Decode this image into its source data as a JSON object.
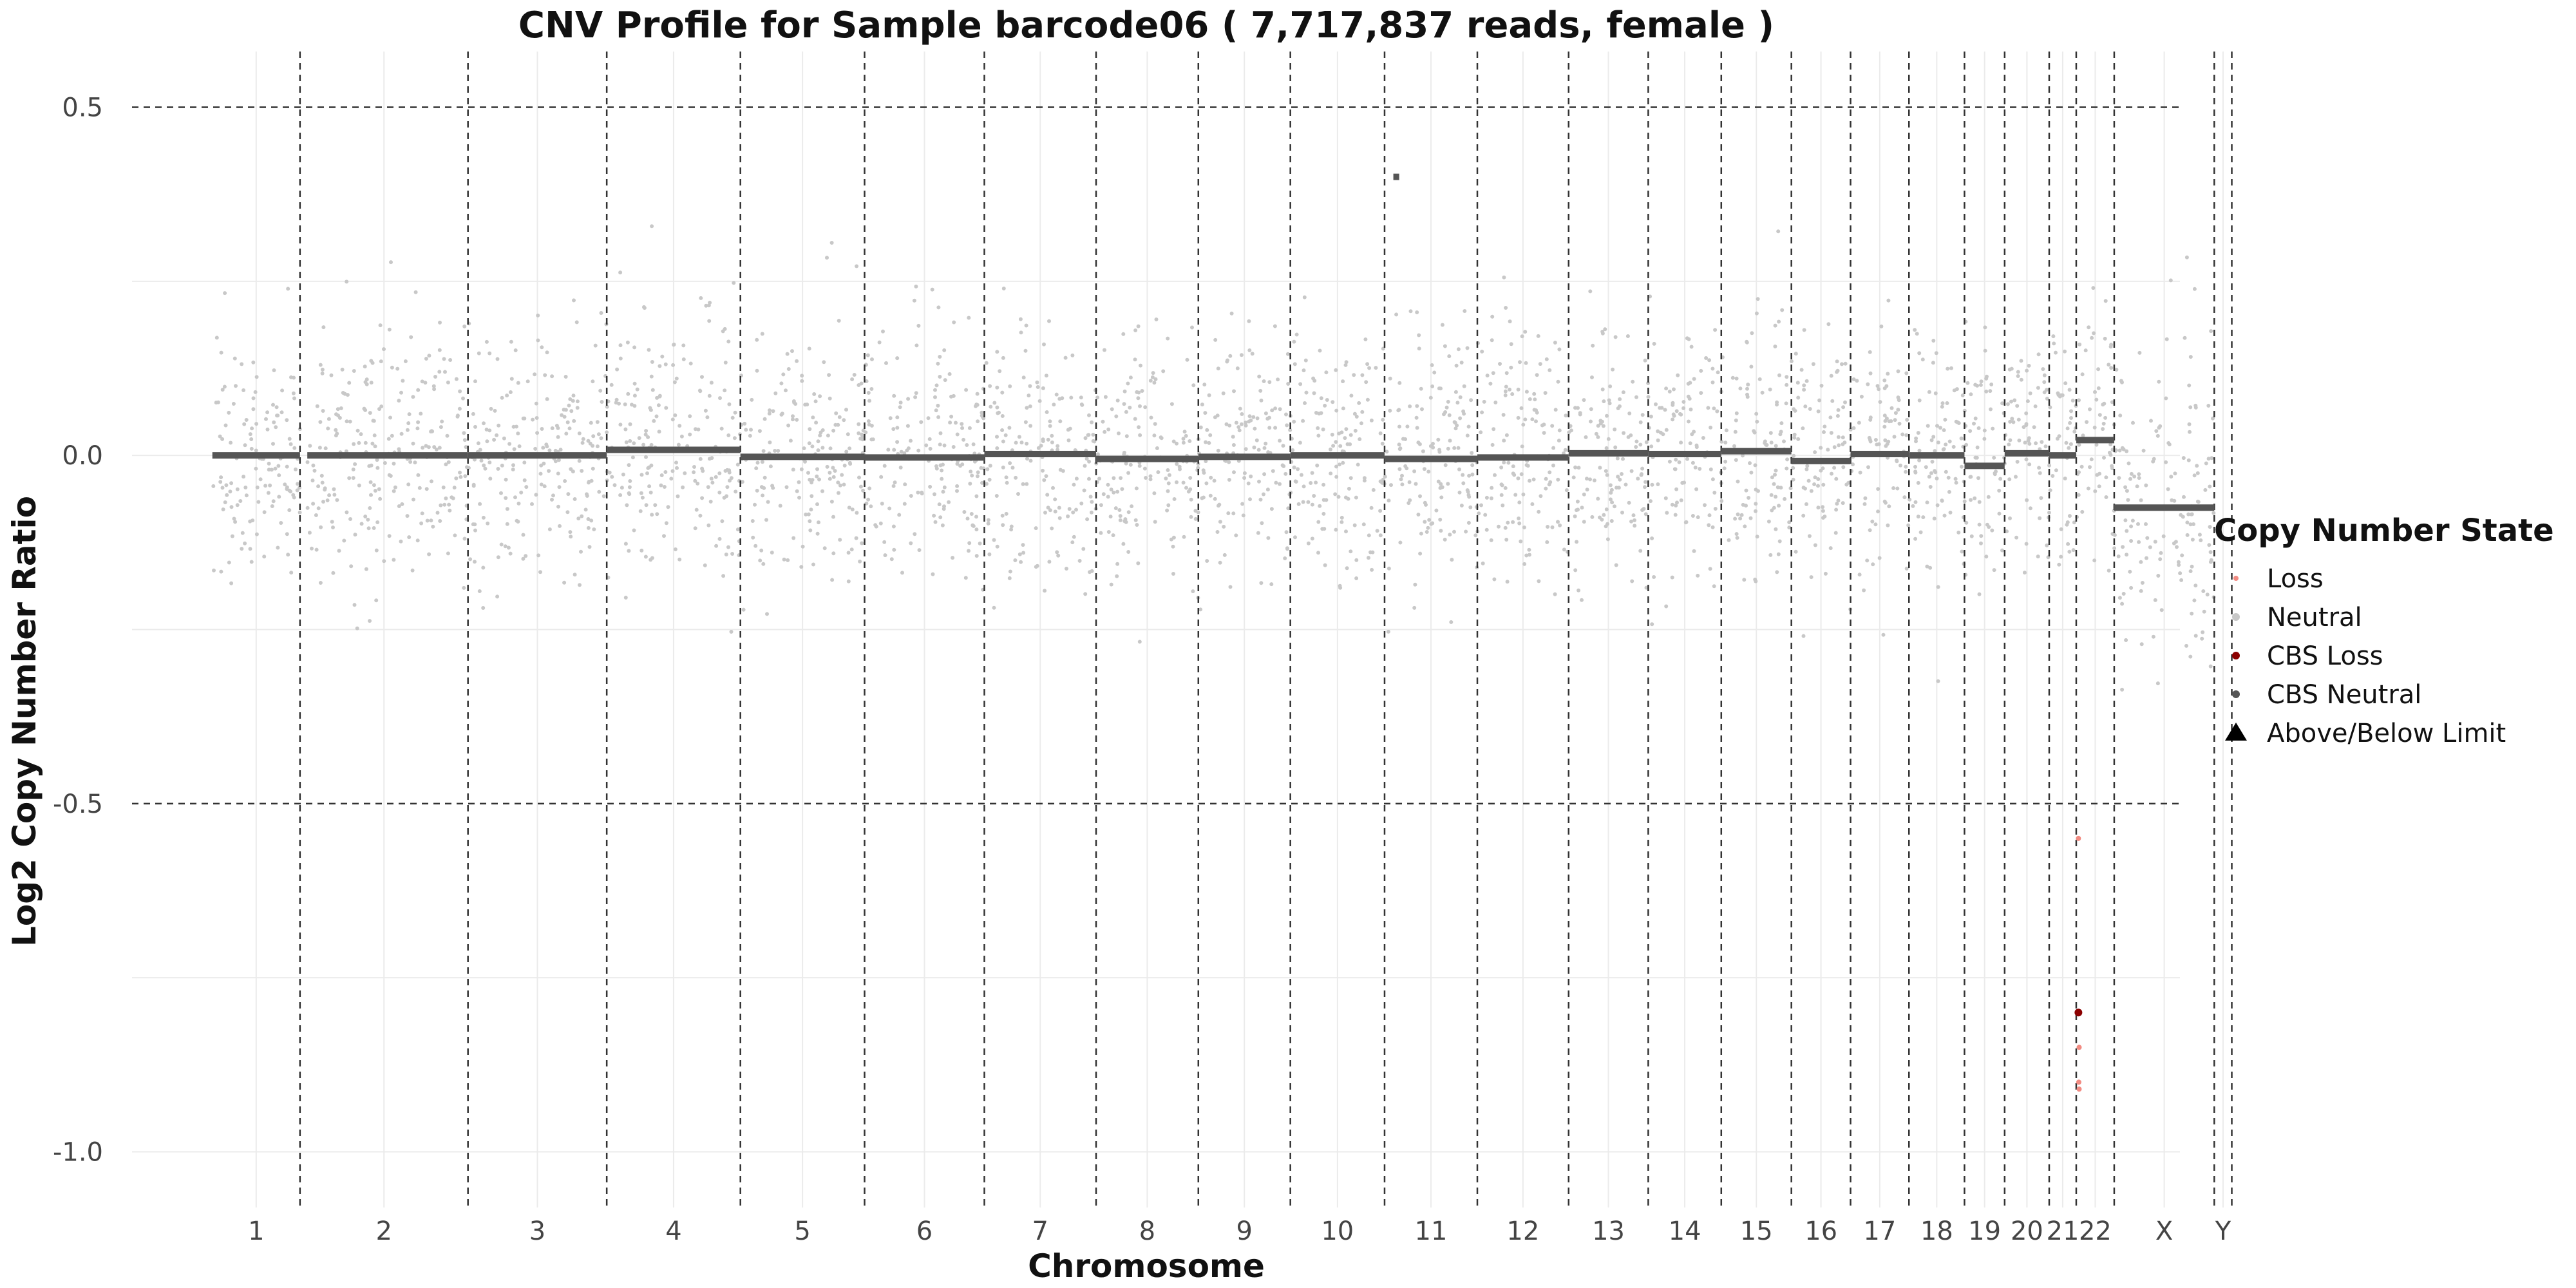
{
  "chart_data": {
    "type": "scatter",
    "title": "CNV Profile for Sample barcode06 ( 7,717,837 reads, female )",
    "xlabel": "Chromosome",
    "ylabel": "Log2 Copy Number Ratio",
    "ylim": [
      -1.08,
      0.58
    ],
    "y_ticks": [
      -1.0,
      -0.5,
      0.0,
      0.5
    ],
    "y_tick_labels": [
      "-1.0",
      "-0.5",
      "0.0",
      "0.5"
    ],
    "threshold_lines": [
      0.5,
      -0.5
    ],
    "grid": true,
    "x_axis": {
      "unit": "genomic bin index",
      "range": [
        0,
        28040
      ],
      "chromosomes": [
        {
          "name": "1",
          "start": 1100,
          "end": 2300
        },
        {
          "name": "2",
          "start": 2300,
          "end": 4600
        },
        {
          "name": "3",
          "start": 4600,
          "end": 6500
        },
        {
          "name": "4",
          "start": 6500,
          "end": 8330
        },
        {
          "name": "5",
          "start": 8330,
          "end": 10030
        },
        {
          "name": "6",
          "start": 10030,
          "end": 11670
        },
        {
          "name": "7",
          "start": 11670,
          "end": 13200
        },
        {
          "name": "8",
          "start": 13200,
          "end": 14600
        },
        {
          "name": "9",
          "start": 14600,
          "end": 15860
        },
        {
          "name": "10",
          "start": 15860,
          "end": 17150
        },
        {
          "name": "11",
          "start": 17150,
          "end": 18420
        },
        {
          "name": "12",
          "start": 18420,
          "end": 19670
        },
        {
          "name": "13",
          "start": 19670,
          "end": 20760
        },
        {
          "name": "14",
          "start": 20760,
          "end": 21760
        },
        {
          "name": "15",
          "start": 21760,
          "end": 22720
        },
        {
          "name": "16",
          "start": 22720,
          "end": 23530
        },
        {
          "name": "17",
          "start": 23530,
          "end": 24330
        },
        {
          "name": "18",
          "start": 24330,
          "end": 25090
        },
        {
          "name": "19",
          "start": 25090,
          "end": 25640
        },
        {
          "name": "20",
          "start": 25640,
          "end": 26250
        },
        {
          "name": "21",
          "start": 26250,
          "end": 26620
        },
        {
          "name": "22",
          "start": 26620,
          "end": 27140
        },
        {
          "name": "X",
          "start": 27140,
          "end": 28510
        },
        {
          "name": "Y",
          "start": 28510,
          "end": 28750
        }
      ]
    },
    "segments": [
      {
        "chrom": "1",
        "start": 1100,
        "end": 2300,
        "value": 0.0
      },
      {
        "chrom": "2",
        "start": 2400,
        "end": 4600,
        "value": 0.0
      },
      {
        "chrom": "3",
        "start": 4600,
        "end": 6500,
        "value": 0.0
      },
      {
        "chrom": "4",
        "start": 6500,
        "end": 8330,
        "value": 0.008
      },
      {
        "chrom": "5",
        "start": 8330,
        "end": 10030,
        "value": -0.002
      },
      {
        "chrom": "6",
        "start": 10030,
        "end": 11670,
        "value": -0.003
      },
      {
        "chrom": "7",
        "start": 11670,
        "end": 13200,
        "value": 0.002
      },
      {
        "chrom": "8",
        "start": 13200,
        "end": 14600,
        "value": -0.005
      },
      {
        "chrom": "9",
        "start": 14600,
        "end": 15860,
        "value": -0.002
      },
      {
        "chrom": "10",
        "start": 15860,
        "end": 17150,
        "value": 0.0
      },
      {
        "chrom": "10",
        "start": 17270,
        "end": 17350,
        "value": 0.4
      },
      {
        "chrom": "11",
        "start": 17150,
        "end": 18420,
        "value": -0.005
      },
      {
        "chrom": "12",
        "start": 18420,
        "end": 19670,
        "value": -0.003
      },
      {
        "chrom": "13",
        "start": 19670,
        "end": 20760,
        "value": 0.003
      },
      {
        "chrom": "14",
        "start": 20760,
        "end": 21760,
        "value": 0.002
      },
      {
        "chrom": "15",
        "start": 21760,
        "end": 22720,
        "value": 0.006
      },
      {
        "chrom": "16",
        "start": 22720,
        "end": 23530,
        "value": -0.008
      },
      {
        "chrom": "17",
        "start": 23530,
        "end": 24330,
        "value": 0.002
      },
      {
        "chrom": "18",
        "start": 24330,
        "end": 25090,
        "value": 0.0
      },
      {
        "chrom": "19",
        "start": 25090,
        "end": 25640,
        "value": -0.015
      },
      {
        "chrom": "20",
        "start": 25640,
        "end": 26250,
        "value": 0.003
      },
      {
        "chrom": "21",
        "start": 26250,
        "end": 26620,
        "value": 0.0
      },
      {
        "chrom": "22",
        "start": 26620,
        "end": 27140,
        "value": 0.022
      },
      {
        "chrom": "X",
        "start": 27140,
        "end": 28510,
        "value": -0.075
      }
    ],
    "cbs_loss_points": [
      {
        "chrom": "22",
        "x": 26650,
        "y": -0.8
      }
    ],
    "loss_points": [
      {
        "chrom": "22",
        "x": 26650,
        "y": -0.55
      },
      {
        "chrom": "22",
        "x": 26660,
        "y": -0.85
      },
      {
        "chrom": "22",
        "x": 26655,
        "y": -0.9
      },
      {
        "chrom": "22",
        "x": 26660,
        "y": -0.91
      }
    ],
    "neutral_spread_sd": 0.09,
    "legend": {
      "title": "Copy Number State",
      "placement": "right",
      "entries": [
        {
          "label": "Loss",
          "color": "#f28b82",
          "shape": "point"
        },
        {
          "label": "Neutral",
          "color": "#c8c8c8",
          "shape": "point"
        },
        {
          "label": "CBS Loss",
          "color": "#8b0000",
          "shape": "point"
        },
        {
          "label": "CBS Neutral",
          "color": "#555555",
          "shape": "point"
        },
        {
          "label": "Above/Below Limit",
          "color": "#000000",
          "shape": "triangle"
        }
      ]
    },
    "colors": {
      "neutral_points": "#c8c8c8",
      "cbs_neutral": "#555555",
      "cbs_loss": "#8b0000",
      "loss": "#f28b82",
      "grid": "#ebebeb",
      "dashed": "#333333"
    }
  }
}
